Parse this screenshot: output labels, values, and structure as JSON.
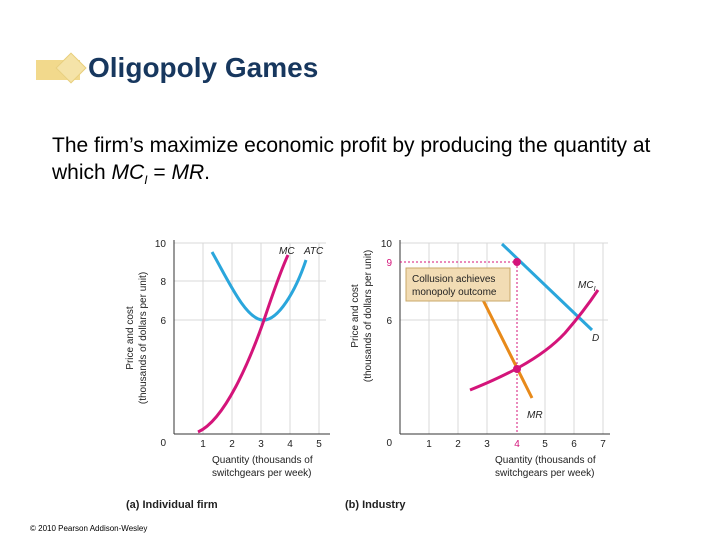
{
  "slide": {
    "title": "Oligopoly Games",
    "body_plain": "The firm’s maximize economic profit by producing the quantity at which ",
    "body_mc": "MC",
    "body_mc_sub": "I",
    "body_eq": " = ",
    "body_mr": "MR",
    "body_end": ".",
    "copyright": "© 2010 Pearson Addison-Wesley"
  },
  "colors": {
    "mc": "#d4147a",
    "atc": "#2aa6dc",
    "demand": "#2aa6dc",
    "mr": "#e88a1a",
    "collusion_box": "#f2dcb4",
    "dotted": "#d4147a"
  },
  "panel_a": {
    "caption": "(a) Individual firm",
    "ylabel_line1": "Price and cost",
    "ylabel_line2": "(thousands of dollars per unit)",
    "xlabel_line1": "Quantity (thousands of",
    "xlabel_line2": "switchgears per week)",
    "mc_label": "MC",
    "atc_label": "ATC",
    "y_ticks": [
      "0",
      "6",
      "8",
      "10"
    ],
    "x_ticks": [
      "1",
      "2",
      "3",
      "4",
      "5"
    ]
  },
  "panel_b": {
    "caption": "(b) Industry",
    "ylabel_line1": "Price and cost",
    "ylabel_line2": "(thousands of dollars per unit)",
    "xlabel_line1": "Quantity (thousands of",
    "xlabel_line2": "switchgears per week)",
    "mc_label": "MC",
    "mc_sub": "I",
    "d_label": "D",
    "mr_label": "MR",
    "callout_line1": "Collusion achieves",
    "callout_line2": "monopoly outcome",
    "y_ticks": [
      "0",
      "6",
      "9",
      "10"
    ],
    "x_ticks": [
      "0",
      "1",
      "2",
      "3",
      "4",
      "5",
      "6",
      "7"
    ],
    "highlight_price": "9",
    "highlight_quantity": "4"
  }
}
